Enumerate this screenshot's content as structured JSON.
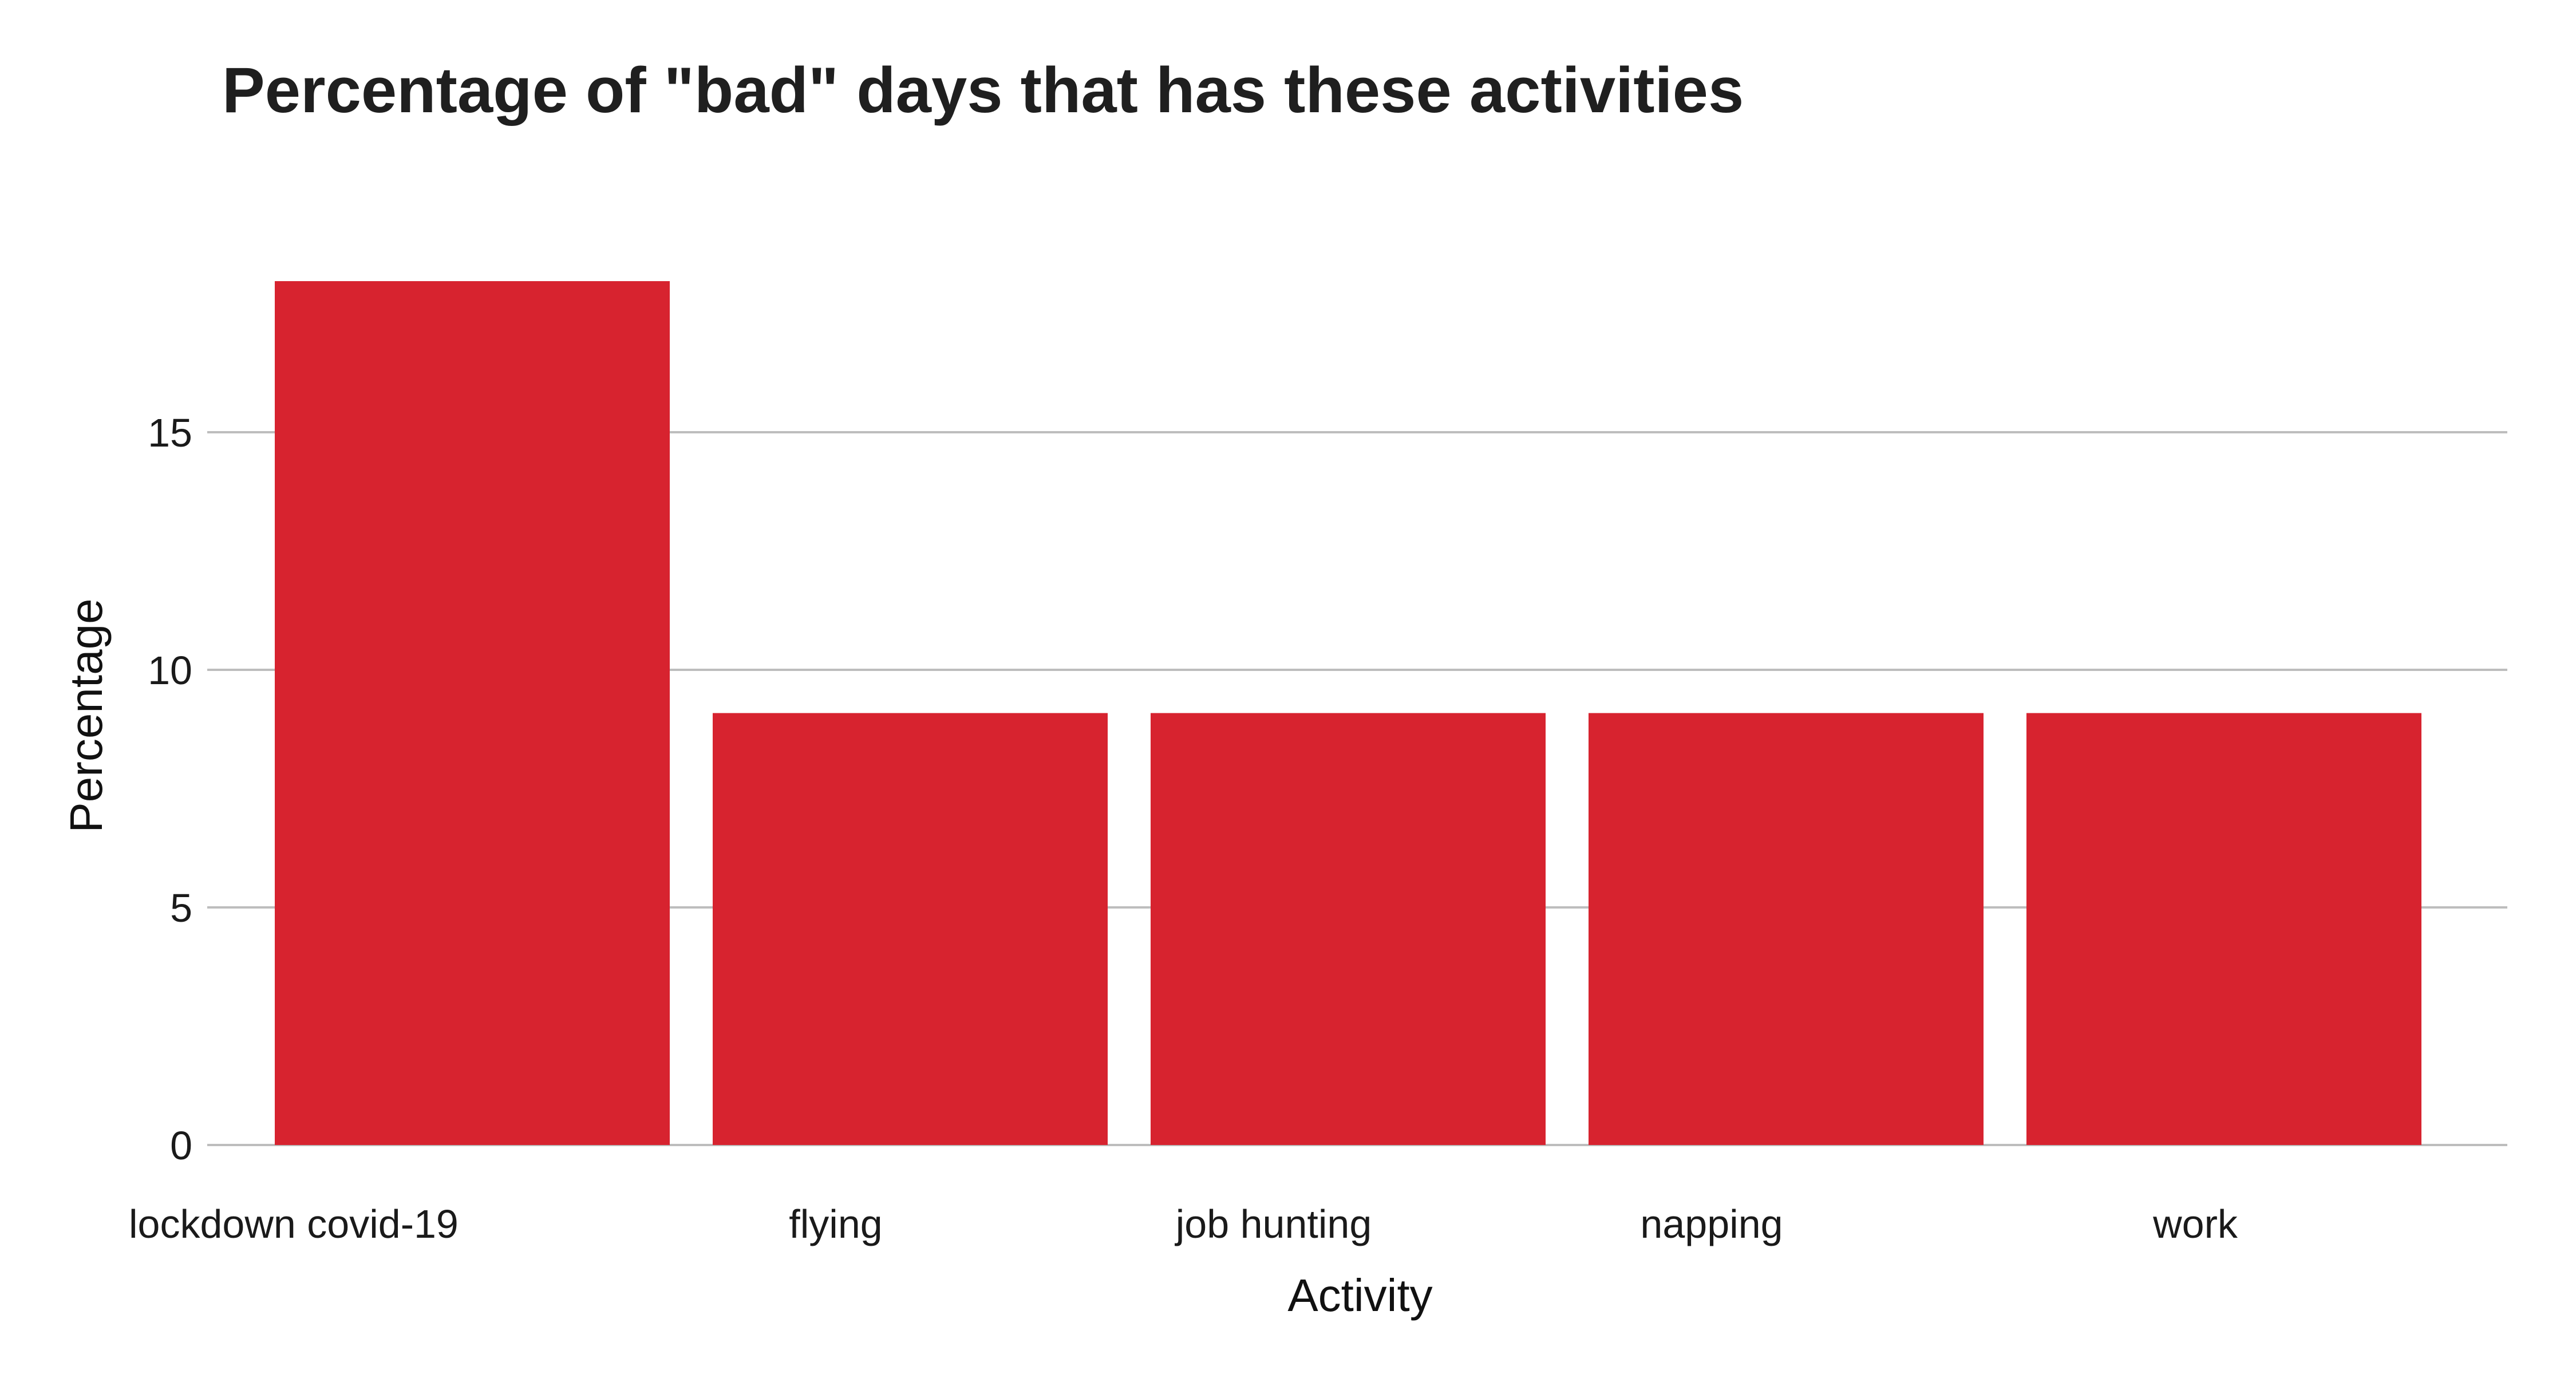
{
  "chart_data": {
    "type": "bar",
    "title": "Percentage of \"bad\" days that has these activities",
    "xlabel": "Activity",
    "ylabel": "Percentage",
    "categories": [
      "lockdown covid-19",
      "flying",
      "job hunting",
      "napping",
      "work"
    ],
    "values": [
      18.18,
      9.09,
      9.09,
      9.09,
      9.09
    ],
    "yticks": [
      0,
      5,
      10,
      15
    ],
    "ylim": [
      0,
      19.5
    ],
    "grid": true,
    "legend": "none",
    "bar_color": "#d7232f"
  }
}
